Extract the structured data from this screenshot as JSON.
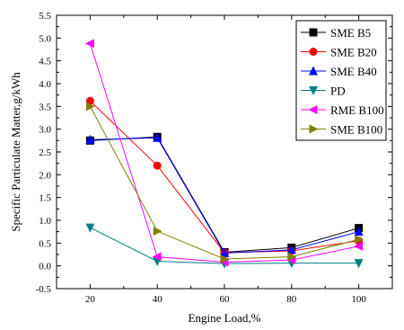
{
  "chart_data": {
    "type": "line",
    "title": "",
    "xlabel": "Engine Load,%",
    "ylabel": "Specific Particulate Matter,g/kWh",
    "x": [
      20,
      40,
      60,
      80,
      100
    ],
    "xlim": [
      10,
      110
    ],
    "ylim": [
      -0.5,
      5.5
    ],
    "xticks": [
      20,
      40,
      60,
      80,
      100
    ],
    "yticks": [
      -0.5,
      0.0,
      0.5,
      1.0,
      1.5,
      2.0,
      2.5,
      3.0,
      3.5,
      4.0,
      4.5,
      5.0,
      5.5
    ],
    "grid": false,
    "legend_position": "top-right",
    "series": [
      {
        "name": "SME B5",
        "color": "#000000",
        "marker": "square",
        "values": [
          2.75,
          2.83,
          0.3,
          0.4,
          0.83
        ]
      },
      {
        "name": "SME B20",
        "color": "#ff0000",
        "marker": "circle",
        "values": [
          3.62,
          2.2,
          0.29,
          0.33,
          0.55
        ]
      },
      {
        "name": "SME B40",
        "color": "#0000ff",
        "marker": "triangle-up",
        "values": [
          2.77,
          2.81,
          0.28,
          0.35,
          0.75
        ]
      },
      {
        "name": "PD",
        "color": "#008080",
        "marker": "triangle-down",
        "values": [
          0.84,
          0.1,
          0.05,
          0.06,
          0.06
        ]
      },
      {
        "name": "RME B100",
        "color": "#ff00ff",
        "marker": "triangle-left",
        "values": [
          4.88,
          0.2,
          0.08,
          0.13,
          0.43
        ]
      },
      {
        "name": "SME B100",
        "color": "#808000",
        "marker": "triangle-right",
        "values": [
          3.5,
          0.76,
          0.15,
          0.2,
          0.58
        ]
      }
    ]
  }
}
